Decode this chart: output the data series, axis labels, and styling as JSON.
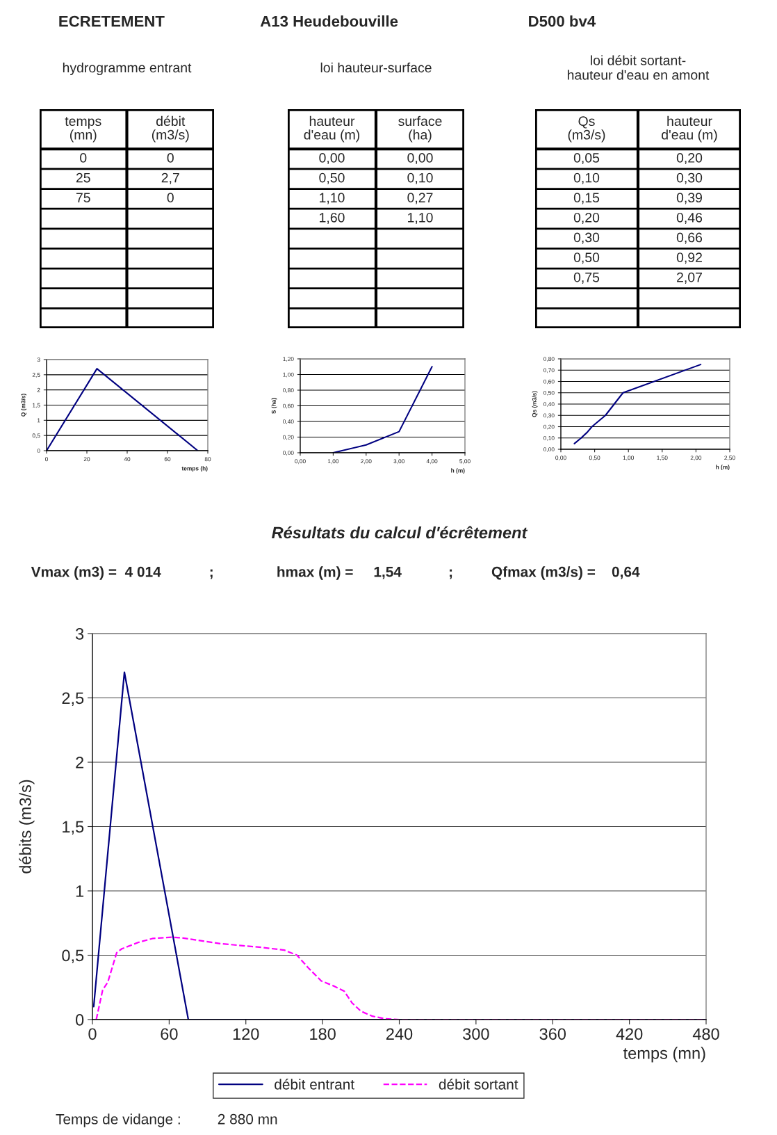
{
  "chart_data": [
    {
      "type": "other",
      "annotations": [
        "ECRETEMENT",
        "A13 Heudebouville",
        "D500 bv4"
      ]
    },
    {
      "type": "other",
      "title": "hydrogramme entrant",
      "categories": [
        "temps\n(mn)",
        "débit\n(m3/s)"
      ],
      "cell_labels": [
        [
          "0",
          "0"
        ],
        [
          "25",
          "2,7"
        ],
        [
          "75",
          "0"
        ],
        [
          null,
          null
        ],
        [
          null,
          null
        ],
        [
          null,
          null
        ],
        [
          null,
          null
        ],
        [
          null,
          null
        ],
        [
          null,
          null
        ]
      ]
    },
    {
      "type": "other",
      "title": "loi hauteur-surface",
      "categories": [
        "hauteur\nd'eau (m)",
        "surface\n(ha)"
      ],
      "cell_labels": [
        [
          "0,00",
          "0,00"
        ],
        [
          "0,50",
          "0,10"
        ],
        [
          "1,10",
          "0,27"
        ],
        [
          "1,60",
          "1,10"
        ],
        [
          null,
          null
        ],
        [
          null,
          null
        ],
        [
          null,
          null
        ],
        [
          null,
          null
        ],
        [
          null,
          null
        ]
      ]
    },
    {
      "type": "other",
      "title": "loi débit sortant-\nhauteur d'eau en amont",
      "categories": [
        "Qs\n(m3/s)",
        "hauteur\nd'eau (m)"
      ],
      "cell_labels": [
        [
          "0,05",
          "0,20"
        ],
        [
          "0,10",
          "0,30"
        ],
        [
          "0,15",
          "0,39"
        ],
        [
          "0,20",
          "0,46"
        ],
        [
          "0,30",
          "0,66"
        ],
        [
          "0,50",
          "0,92"
        ],
        [
          "0,75",
          "2,07"
        ],
        [
          null,
          null
        ],
        [
          null,
          null
        ]
      ]
    },
    {
      "type": "line",
      "xlabel": "temps (h)",
      "ylabel": "Q (m3/s)",
      "grid": "y",
      "x": [
        0,
        25,
        75
      ],
      "series": [
        {
          "color": "#000080",
          "values": [
            0,
            2.7,
            0
          ]
        }
      ],
      "xlim": [
        0,
        80
      ],
      "xticks": [
        0,
        20,
        40,
        60,
        80
      ],
      "ylim": [
        0,
        3
      ],
      "yticks": [
        0,
        {
          "value": 0.5,
          "label": "0,5"
        },
        1,
        {
          "value": 1.5,
          "label": "1,5"
        },
        2,
        {
          "value": 2.5,
          "label": "2,5"
        },
        3
      ]
    },
    {
      "type": "line",
      "xlabel": "h (m)",
      "ylabel": "S (ha)",
      "grid": "y",
      "x": [
        1,
        2,
        3,
        4
      ],
      "series": [
        {
          "color": "#000080",
          "values": [
            0,
            0.1,
            0.27,
            1.1
          ]
        }
      ],
      "xlim": [
        0,
        5
      ],
      "xticks": [
        {
          "value": 0,
          "label": "0,00"
        },
        {
          "value": 1,
          "label": "1,00"
        },
        {
          "value": 2,
          "label": "2,00"
        },
        {
          "value": 3,
          "label": "3,00"
        },
        {
          "value": 4,
          "label": "4,00"
        },
        {
          "value": 5,
          "label": "5,00"
        }
      ],
      "ylim": [
        0,
        1.2
      ],
      "yticks": [
        {
          "value": 0,
          "label": "0,00"
        },
        {
          "value": 0.2,
          "label": "0,20"
        },
        {
          "value": 0.4,
          "label": "0,40"
        },
        {
          "value": 0.6,
          "label": "0,60"
        },
        {
          "value": 0.8,
          "label": "0,80"
        },
        {
          "value": 1.0,
          "label": "1,00"
        },
        {
          "value": 1.2,
          "label": "1,20"
        }
      ]
    },
    {
      "type": "line",
      "xlabel": "h (m)",
      "ylabel": "Qs (m3/s)",
      "grid": "y",
      "x": [
        0.2,
        0.3,
        0.39,
        0.46,
        0.66,
        0.92,
        2.07
      ],
      "series": [
        {
          "color": "#000080",
          "values": [
            0.05,
            0.1,
            0.15,
            0.2,
            0.3,
            0.5,
            0.75
          ]
        }
      ],
      "xlim": [
        0,
        2.5
      ],
      "xticks": [
        {
          "value": 0,
          "label": "0,00"
        },
        {
          "value": 0.5,
          "label": "0,50"
        },
        {
          "value": 1.0,
          "label": "1,00"
        },
        {
          "value": 1.5,
          "label": "1,50"
        },
        {
          "value": 2.0,
          "label": "2,00"
        },
        {
          "value": 2.5,
          "label": "2,50"
        }
      ],
      "ylim": [
        0,
        0.8
      ],
      "yticks": [
        {
          "value": 0,
          "label": "0,00"
        },
        {
          "value": 0.1,
          "label": "0,10"
        },
        {
          "value": 0.2,
          "label": "0,20"
        },
        {
          "value": 0.3,
          "label": "0,30"
        },
        {
          "value": 0.4,
          "label": "0,40"
        },
        {
          "value": 0.5,
          "label": "0,50"
        },
        {
          "value": 0.6,
          "label": "0,60"
        },
        {
          "value": 0.7,
          "label": "0,70"
        },
        {
          "value": 0.8,
          "label": "0,80"
        }
      ]
    },
    {
      "type": "line",
      "title": "Résultats du calcul d'écrêtement",
      "xlabel": "temps (mn)",
      "ylabel": "débits (m3/s)",
      "grid": "y",
      "legend": "bottom",
      "annotations": [
        "Vmax (m3) =  4 014",
        ";",
        "hmax (m) =     1,54",
        ";",
        "Qfmax (m3/s) =    0,64",
        "Temps de vidange :         2 880 mn"
      ],
      "series": [
        {
          "name": "débit entrant",
          "color": "#000080",
          "line_style": "solid",
          "x": [
            1,
            25,
            75,
            480
          ],
          "values": [
            0.1,
            2.7,
            0,
            0
          ]
        },
        {
          "name": "débit sortant",
          "color": "#ff00ff",
          "line_style": "dashed",
          "x": [
            3,
            8,
            12,
            19,
            23,
            36,
            47,
            62,
            70,
            100,
            133,
            150,
            160,
            169,
            179,
            189,
            197,
            203,
            210,
            219,
            229,
            240,
            480
          ],
          "values": [
            0,
            0.23,
            0.29,
            0.52,
            0.55,
            0.6,
            0.63,
            0.64,
            0.635,
            0.59,
            0.56,
            0.54,
            0.5,
            0.4,
            0.3,
            0.26,
            0.22,
            0.13,
            0.065,
            0.026,
            0.006,
            0,
            0
          ]
        }
      ],
      "xlim": [
        0,
        480
      ],
      "xticks": [
        0,
        60,
        120,
        180,
        240,
        300,
        360,
        420,
        480
      ],
      "ylim": [
        0,
        3
      ],
      "yticks": [
        0,
        {
          "value": 0.5,
          "label": "0,5"
        },
        1,
        {
          "value": 1.5,
          "label": "1,5"
        },
        2,
        {
          "value": 2.5,
          "label": "2,5"
        },
        3
      ]
    }
  ]
}
